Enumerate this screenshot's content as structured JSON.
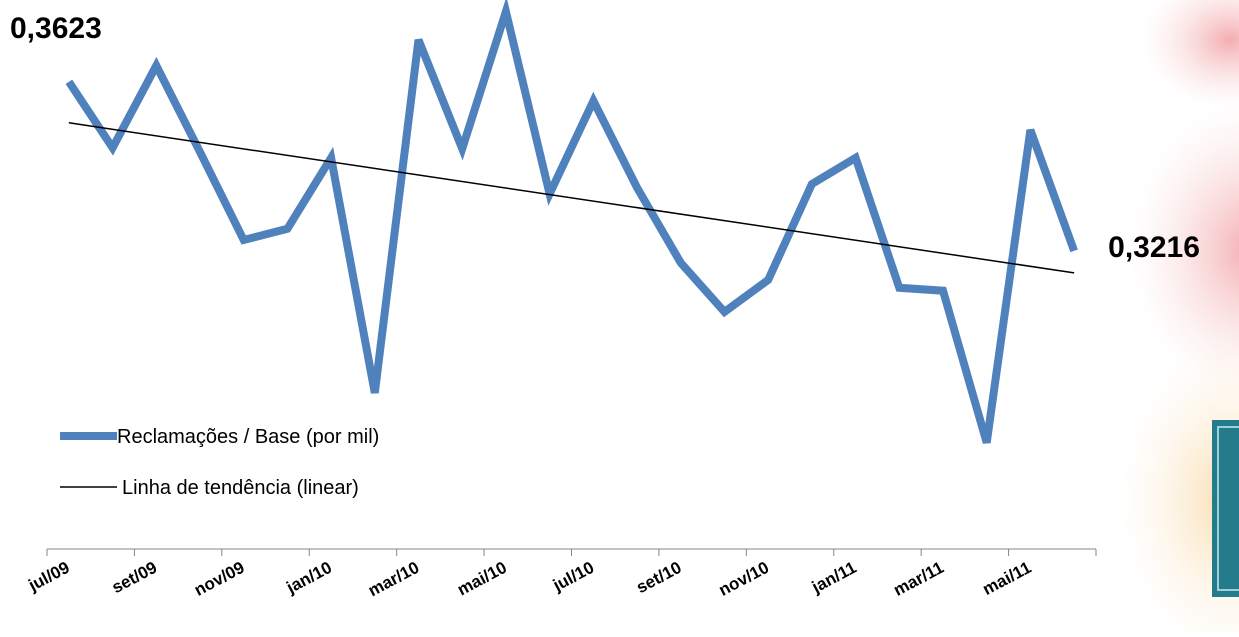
{
  "chart_data": {
    "type": "line",
    "categories": [
      "jul/09",
      null,
      "set/09",
      null,
      "nov/09",
      null,
      "jan/10",
      null,
      "mar/10",
      null,
      "mai/10",
      null,
      "jul/10",
      null,
      "set/10",
      null,
      "nov/10",
      null,
      "jan/11",
      null,
      "mar/11",
      null,
      "mai/11",
      null
    ],
    "series": [
      {
        "name": "Reclamações / Base (por mil)",
        "color": "#4f81bd",
        "values": [
          0.3623,
          0.3464,
          0.3662,
          0.3454,
          0.3242,
          0.3269,
          0.344,
          0.2874,
          0.3724,
          0.3462,
          0.3792,
          0.3353,
          0.3577,
          0.3368,
          0.3187,
          0.3069,
          0.3146,
          0.3377,
          0.344,
          0.3127,
          0.312,
          0.2754,
          0.3507,
          0.3216
        ],
        "value_labels": [
          "0,3623",
          null,
          null,
          null,
          null,
          null,
          null,
          null,
          null,
          null,
          null,
          null,
          null,
          null,
          null,
          null,
          null,
          null,
          null,
          null,
          null,
          null,
          null,
          "0,3216"
        ]
      }
    ],
    "trendline": {
      "name": "Linha de tendência (linear)",
      "fit": "linear",
      "color": "#000000"
    },
    "ylim": [
      0.2498,
      0.382
    ],
    "grid": false
  }
}
